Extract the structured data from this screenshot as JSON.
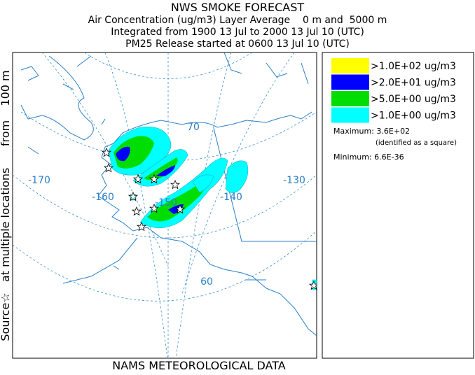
{
  "header": {
    "title": "NWS SMOKE FORECAST",
    "lines": [
      "Air Concentration (ug/m3) Layer Average    0 m and  5000 m",
      "Integrated from 1900 13 Jul to 2000 13 Jul 10 (UTC)",
      "PM25 Release started at 0600 13 Jul 10 (UTC)"
    ]
  },
  "side_label": "Source☆   at multiple locations      from    100 m",
  "footer": "NAMS METEOROLOGICAL DATA",
  "legend": {
    "items": [
      {
        "label": ">1.0E+02 ug/m3",
        "color": "#ffff00"
      },
      {
        "label": ">2.0E+01 ug/m3",
        "color": "#0000ff"
      },
      {
        "label": ">5.0E+00 ug/m3",
        "color": "#00dd00"
      },
      {
        "label": ">1.0E+00 ug/m3",
        "color": "#00ffff"
      }
    ]
  },
  "stats": {
    "maximum": "Maximum: 3.6E+02",
    "maximum_note": "(identified as a square)",
    "minimum": "Minimum: 6.6E-36"
  },
  "map": {
    "labels": [
      "-170",
      "-160",
      "-150",
      "-140",
      "-130",
      "70",
      "60"
    ]
  }
}
